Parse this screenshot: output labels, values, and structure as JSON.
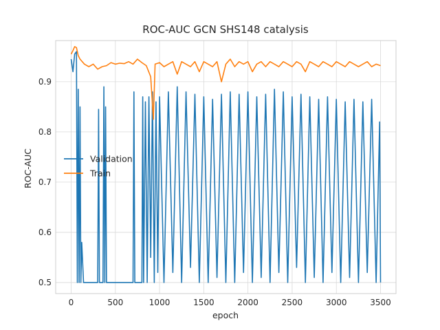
{
  "chart_data": {
    "type": "line",
    "title": "ROC-AUC GCN SHS148 catalysis",
    "xlabel": "epoch",
    "ylabel": "ROC-AUC",
    "xlim": [
      -175,
      3675
    ],
    "ylim": [
      0.478,
      0.982
    ],
    "xticks": [
      0,
      500,
      1000,
      1500,
      2000,
      2500,
      3000,
      3500
    ],
    "yticks": [
      0.5,
      0.6,
      0.7,
      0.8,
      0.9
    ],
    "ytick_labels": [
      "0.5",
      "0.6",
      "0.7",
      "0.8",
      "0.9"
    ],
    "xtick_labels": [
      "0",
      "500",
      "1000",
      "1500",
      "2000",
      "2500",
      "3000",
      "3500"
    ],
    "grid": true,
    "legend_position": "center-left",
    "series": [
      {
        "name": "Validation",
        "color": "#1f77b4",
        "x": [
          0,
          20,
          40,
          60,
          70,
          80,
          90,
          100,
          110,
          120,
          140,
          200,
          300,
          310,
          320,
          360,
          370,
          380,
          390,
          400,
          500,
          600,
          700,
          710,
          720,
          800,
          810,
          820,
          840,
          860,
          880,
          900,
          920,
          940,
          960,
          980,
          1000,
          1050,
          1100,
          1150,
          1200,
          1250,
          1300,
          1350,
          1400,
          1450,
          1500,
          1550,
          1600,
          1650,
          1700,
          1750,
          1800,
          1850,
          1900,
          1950,
          2000,
          2050,
          2100,
          2150,
          2200,
          2250,
          2300,
          2350,
          2400,
          2450,
          2500,
          2550,
          2600,
          2650,
          2700,
          2750,
          2800,
          2850,
          2900,
          2950,
          3000,
          3050,
          3100,
          3150,
          3200,
          3250,
          3300,
          3350,
          3400,
          3450,
          3490,
          3500
        ],
        "y": [
          0.945,
          0.92,
          0.955,
          0.96,
          0.5,
          0.885,
          0.5,
          0.85,
          0.5,
          0.58,
          0.5,
          0.5,
          0.5,
          0.845,
          0.5,
          0.5,
          0.89,
          0.5,
          0.85,
          0.5,
          0.5,
          0.5,
          0.5,
          0.88,
          0.5,
          0.5,
          0.87,
          0.5,
          0.86,
          0.5,
          0.87,
          0.55,
          0.88,
          0.5,
          0.86,
          0.52,
          0.87,
          0.5,
          0.88,
          0.52,
          0.89,
          0.5,
          0.88,
          0.53,
          0.875,
          0.5,
          0.87,
          0.5,
          0.865,
          0.51,
          0.875,
          0.5,
          0.88,
          0.5,
          0.875,
          0.52,
          0.88,
          0.5,
          0.87,
          0.51,
          0.875,
          0.5,
          0.885,
          0.52,
          0.88,
          0.5,
          0.87,
          0.53,
          0.875,
          0.5,
          0.87,
          0.51,
          0.865,
          0.5,
          0.87,
          0.52,
          0.865,
          0.5,
          0.86,
          0.51,
          0.865,
          0.5,
          0.86,
          0.52,
          0.865,
          0.5,
          0.82,
          0.5
        ]
      },
      {
        "name": "Train",
        "color": "#ff7f0e",
        "x": [
          0,
          20,
          40,
          60,
          80,
          100,
          150,
          200,
          250,
          300,
          350,
          400,
          450,
          500,
          550,
          600,
          650,
          700,
          750,
          800,
          850,
          900,
          930,
          950,
          1000,
          1050,
          1100,
          1150,
          1200,
          1250,
          1300,
          1350,
          1400,
          1450,
          1500,
          1550,
          1600,
          1650,
          1700,
          1750,
          1800,
          1850,
          1900,
          1950,
          2000,
          2050,
          2100,
          2150,
          2200,
          2250,
          2300,
          2350,
          2400,
          2450,
          2500,
          2550,
          2600,
          2650,
          2700,
          2750,
          2800,
          2850,
          2900,
          2950,
          3000,
          3050,
          3100,
          3150,
          3200,
          3250,
          3300,
          3350,
          3400,
          3450,
          3500
        ],
        "y": [
          0.955,
          0.962,
          0.97,
          0.968,
          0.952,
          0.945,
          0.935,
          0.93,
          0.935,
          0.925,
          0.93,
          0.932,
          0.938,
          0.935,
          0.937,
          0.936,
          0.94,
          0.935,
          0.945,
          0.938,
          0.932,
          0.91,
          0.825,
          0.935,
          0.938,
          0.93,
          0.935,
          0.94,
          0.915,
          0.94,
          0.935,
          0.93,
          0.94,
          0.92,
          0.94,
          0.935,
          0.93,
          0.94,
          0.9,
          0.935,
          0.945,
          0.93,
          0.94,
          0.935,
          0.94,
          0.92,
          0.935,
          0.94,
          0.93,
          0.94,
          0.935,
          0.93,
          0.94,
          0.935,
          0.93,
          0.94,
          0.935,
          0.92,
          0.94,
          0.935,
          0.93,
          0.94,
          0.935,
          0.93,
          0.94,
          0.935,
          0.93,
          0.94,
          0.935,
          0.93,
          0.935,
          0.94,
          0.93,
          0.935,
          0.932
        ]
      }
    ]
  }
}
